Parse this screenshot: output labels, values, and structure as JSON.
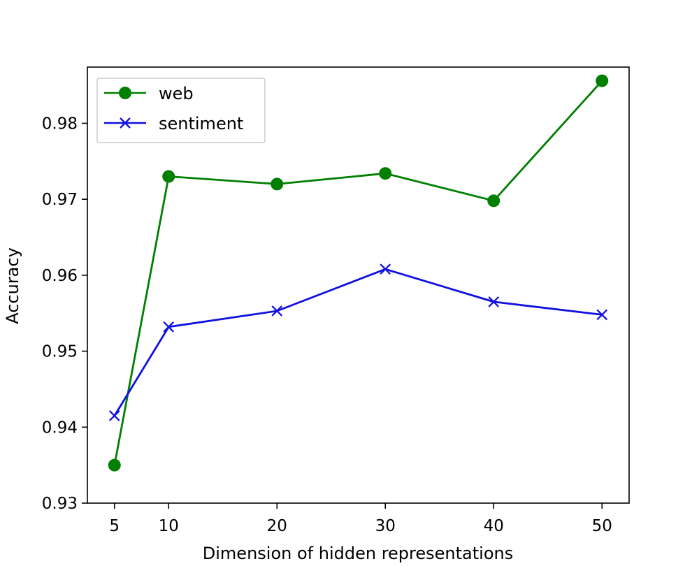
{
  "chart_data": {
    "type": "line",
    "title": "",
    "xlabel": "Dimension of hidden representations",
    "ylabel": "Accuracy",
    "x": [
      5,
      10,
      20,
      30,
      40,
      50
    ],
    "xticks": [
      5,
      10,
      20,
      30,
      40,
      50
    ],
    "xtick_labels": [
      "5",
      "10",
      "20",
      "30",
      "40",
      "50"
    ],
    "yticks": [
      0.93,
      0.94,
      0.95,
      0.96,
      0.97,
      0.98
    ],
    "ytick_labels": [
      "0.93",
      "0.94",
      "0.95",
      "0.96",
      "0.97",
      "0.98"
    ],
    "xlim": [
      2.5,
      52.5
    ],
    "ylim": [
      0.93,
      0.9874
    ],
    "grid": false,
    "legend_position": "top-left",
    "series": [
      {
        "name": "web",
        "values": [
          0.935,
          0.973,
          0.972,
          0.9734,
          0.9698,
          0.9856
        ],
        "color": "#007f00",
        "marker": "circle"
      },
      {
        "name": "sentiment",
        "values": [
          0.9415,
          0.9532,
          0.9553,
          0.9608,
          0.9565,
          0.9548
        ],
        "color": "#1010e0",
        "marker": "x"
      }
    ]
  }
}
